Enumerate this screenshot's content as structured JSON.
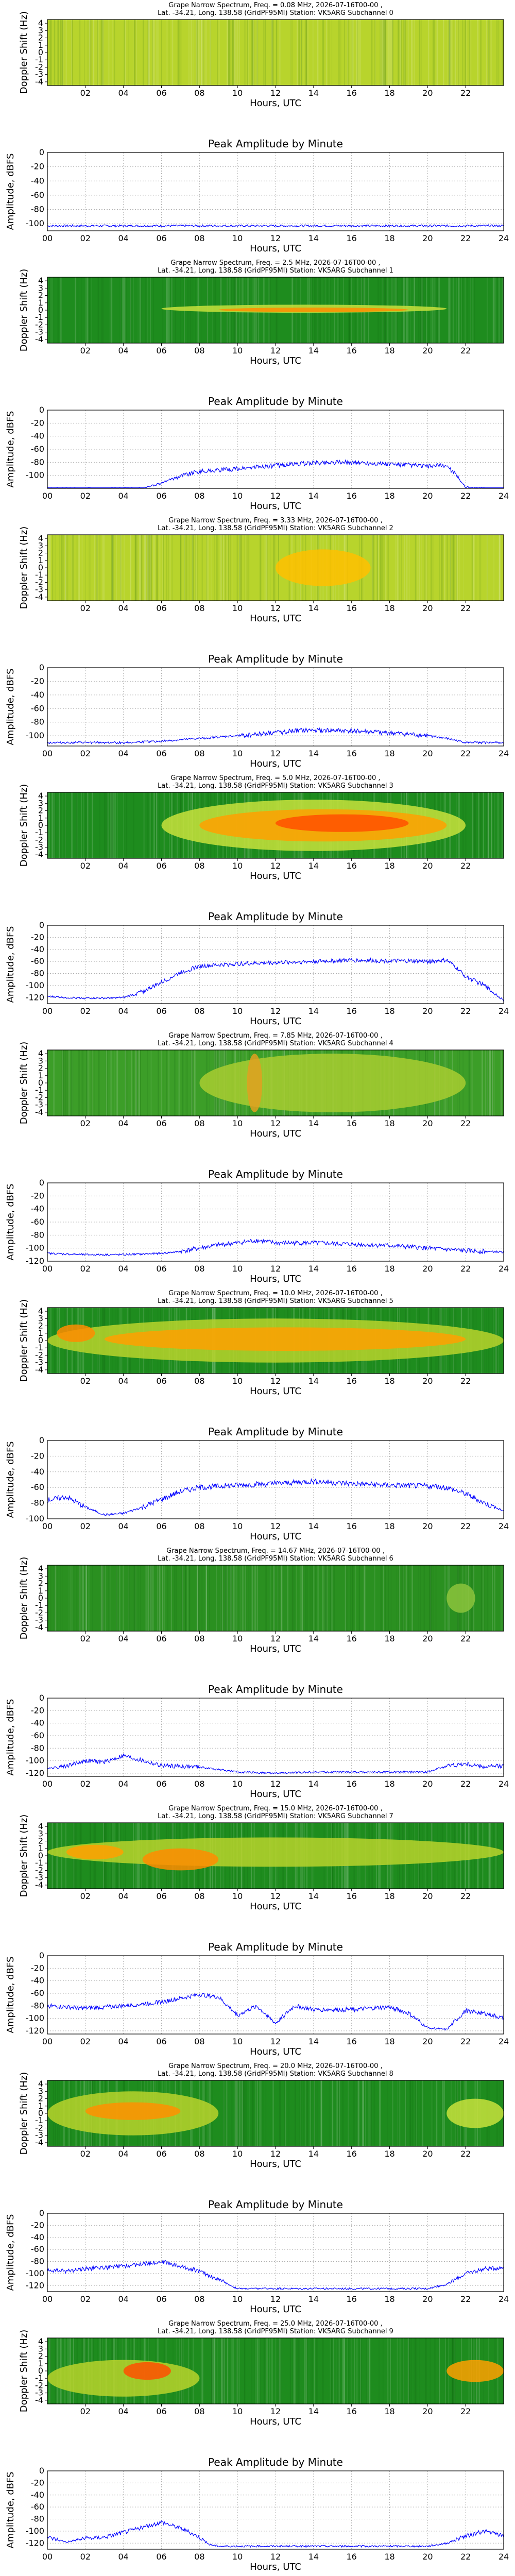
{
  "figure": {
    "spec_ylabel": "Doppler Shift (Hz)",
    "spec_xlabel": "Hours, UTC",
    "spec_yticks": [
      -4,
      -3,
      -2,
      -1,
      0,
      1,
      2,
      3,
      4
    ],
    "spec_xticks": [
      "02",
      "04",
      "06",
      "08",
      "10",
      "12",
      "14",
      "16",
      "18",
      "20",
      "22"
    ],
    "amp_title": "Peak Amplitude by Minute",
    "amp_ylabel": "Amplitude, dBFS",
    "amp_xlabel": "Hours, UTC",
    "amp_xticks": [
      "00",
      "02",
      "04",
      "06",
      "08",
      "10",
      "12",
      "14",
      "16",
      "18",
      "20",
      "22",
      "24"
    ],
    "colors": {
      "trace": "#0000ff",
      "low": "#1a8a1a",
      "mid": "#c8e23c",
      "high": "#ffa000",
      "peak": "#ff3300"
    }
  },
  "channels": [
    {
      "title1": "Grape Narrow Spectrum, Freq. = 0.08 MHz, 2026-07-16T00-00 ,",
      "title2": "Lat. -34.21, Long. 138.58 (GridPF95MI) Station: VK5ARG Subchannel 0",
      "spec_bg": "#b8d42c",
      "spec": [],
      "amp_yticks": [
        0,
        -20,
        -40,
        -60,
        -80,
        -100
      ],
      "amp_ylim": [
        -110,
        0
      ]
    },
    {
      "title1": "Grape Narrow Spectrum, Freq. = 2.5 MHz, 2026-07-16T00-00 ,",
      "title2": "Lat. -34.21, Long. 138.58 (GridPF95MI) Station: VK5ARG Subchannel 1",
      "spec_bg": "#1e8c1e",
      "spec": [
        [
          6,
          21,
          0.2,
          0.55,
          "#c8e23c"
        ],
        [
          9,
          19,
          0.05,
          0.3,
          "#ff8c00"
        ]
      ],
      "amp_yticks": [
        0,
        -20,
        -40,
        -60,
        -80,
        -100
      ],
      "amp_ylim": [
        -120,
        0
      ]
    },
    {
      "title1": "Grape Narrow Spectrum, Freq. = 3.33 MHz, 2026-07-16T00-00 ,",
      "title2": "Lat. -34.21, Long. 138.58 (GridPF95MI) Station: VK5ARG Subchannel 2",
      "spec_bg": "#b8d42c",
      "spec": [
        [
          12,
          17,
          0,
          2.5,
          "#ffc000"
        ]
      ],
      "amp_yticks": [
        0,
        -20,
        -40,
        -60,
        -80,
        -100
      ],
      "amp_ylim": [
        -115,
        0
      ]
    },
    {
      "title1": "Grape Narrow Spectrum, Freq. = 5.0 MHz, 2026-07-16T00-00 ,",
      "title2": "Lat. -34.21, Long. 138.58 (GridPF95MI) Station: VK5ARG Subchannel 3",
      "spec_bg": "#1e8c1e",
      "spec": [
        [
          6,
          22,
          0,
          3.5,
          "#c8e23c"
        ],
        [
          8,
          21,
          0,
          2.2,
          "#ffa000"
        ],
        [
          12,
          19,
          0.3,
          1.2,
          "#ff5000"
        ]
      ],
      "amp_yticks": [
        0,
        -20,
        -40,
        -60,
        -80,
        -100,
        -120
      ],
      "amp_ylim": [
        -130,
        0
      ]
    },
    {
      "title1": "Grape Narrow Spectrum, Freq. = 7.85 MHz, 2026-07-16T00-00 ,",
      "title2": "Lat. -34.21, Long. 138.58 (GridPF95MI) Station: VK5ARG Subchannel 4",
      "spec_bg": "#3c9e28",
      "spec": [
        [
          8,
          22,
          0,
          4,
          "#a8cc30"
        ],
        [
          10.5,
          11.3,
          0,
          4,
          "#e0a020"
        ]
      ],
      "amp_yticks": [
        0,
        -20,
        -40,
        -60,
        -80,
        -100,
        -120
      ],
      "amp_ylim": [
        -120,
        0
      ]
    },
    {
      "title1": "Grape Narrow Spectrum, Freq. = 10.0 MHz, 2026-07-16T00-00 ,",
      "title2": "Lat. -34.21, Long. 138.58 (GridPF95MI) Station: VK5ARG Subchannel 5",
      "spec_bg": "#1e8c1e",
      "spec": [
        [
          0,
          24,
          0,
          3,
          "#b8d42c"
        ],
        [
          3,
          22,
          0.2,
          1.6,
          "#ffa000"
        ],
        [
          0.5,
          2.5,
          1,
          1.2,
          "#ff8c00"
        ]
      ],
      "amp_yticks": [
        0,
        -20,
        -40,
        -60,
        -80,
        -100
      ],
      "amp_ylim": [
        -100,
        0
      ]
    },
    {
      "title1": "Grape Narrow Spectrum, Freq. = 14.67 MHz, 2026-07-16T00-00 ,",
      "title2": "Lat. -34.21, Long. 138.58 (GridPF95MI) Station: VK5ARG Subchannel 6",
      "spec_bg": "#2a9020",
      "spec": [
        [
          21,
          22.5,
          0,
          2,
          "#8cc43c"
        ]
      ],
      "amp_yticks": [
        0,
        -20,
        -40,
        -60,
        -80,
        -100,
        -120
      ],
      "amp_ylim": [
        -125,
        0
      ]
    },
    {
      "title1": "Grape Narrow Spectrum, Freq. = 15.0 MHz, 2026-07-16T00-00 ,",
      "title2": "Lat. -34.21, Long. 138.58 (GridPF95MI) Station: VK5ARG Subchannel 7",
      "spec_bg": "#1e8c1e",
      "spec": [
        [
          0,
          24,
          0.5,
          2,
          "#b8d42c"
        ],
        [
          5,
          9,
          -0.5,
          1.5,
          "#ff8c00"
        ],
        [
          1,
          4,
          0.5,
          1,
          "#ffa000"
        ]
      ],
      "amp_yticks": [
        0,
        -20,
        -40,
        -60,
        -80,
        -100,
        -120
      ],
      "amp_ylim": [
        -125,
        0
      ]
    },
    {
      "title1": "Grape Narrow Spectrum, Freq. = 20.0 MHz, 2026-07-16T00-00 ,",
      "title2": "Lat. -34.21, Long. 138.58 (GridPF95MI) Station: VK5ARG Subchannel 8",
      "spec_bg": "#1e8c1e",
      "spec": [
        [
          0,
          9,
          0,
          3,
          "#b8d42c"
        ],
        [
          2,
          7,
          0.3,
          1.2,
          "#ff9000"
        ],
        [
          21,
          24,
          0,
          2,
          "#c8e23c"
        ]
      ],
      "amp_yticks": [
        0,
        -20,
        -40,
        -60,
        -80,
        -100,
        -120
      ],
      "amp_ylim": [
        -130,
        0
      ]
    },
    {
      "title1": "Grape Narrow Spectrum, Freq. = 25.0 MHz, 2026-07-16T00-00 ,",
      "title2": "Lat. -34.21, Long. 138.58 (GridPF95MI) Station: VK5ARG Subchannel 9",
      "spec_bg": "#1e8c1e",
      "spec": [
        [
          0,
          8,
          -1,
          2.5,
          "#b8d42c"
        ],
        [
          4,
          6.5,
          0,
          1.2,
          "#ff5000"
        ],
        [
          21,
          24,
          0,
          1.5,
          "#ffa000"
        ]
      ],
      "amp_yticks": [
        0,
        -20,
        -40,
        -60,
        -80,
        -100,
        -120
      ],
      "amp_ylim": [
        -130,
        0
      ]
    }
  ],
  "chart_data": [
    {
      "type": "line",
      "title": "Peak Amplitude by Minute",
      "xlabel": "Hours, UTC",
      "ylabel": "Amplitude, dBFS",
      "xlim": [
        0,
        24
      ],
      "ylim": [
        -110,
        0
      ],
      "series": [
        {
          "x": [
            0,
            2,
            4,
            6,
            8,
            10,
            12,
            14,
            16,
            18,
            20,
            22,
            24
          ],
          "y": [
            -103,
            -103,
            -103,
            -103,
            -103,
            -103,
            -103,
            -103,
            -103,
            -103,
            -103,
            -103,
            -103
          ]
        }
      ]
    },
    {
      "type": "line",
      "title": "Peak Amplitude by Minute",
      "xlabel": "Hours, UTC",
      "ylabel": "Amplitude, dBFS",
      "xlim": [
        0,
        24
      ],
      "ylim": [
        -120,
        0
      ],
      "series": [
        {
          "x": [
            0,
            2,
            4,
            5,
            6,
            7,
            8,
            9,
            10,
            12,
            14,
            15,
            16,
            18,
            20,
            21,
            21.5,
            22,
            23,
            24
          ],
          "y": [
            -120,
            -120,
            -120,
            -120,
            -112,
            -100,
            -94,
            -92,
            -90,
            -85,
            -81,
            -80,
            -80,
            -83,
            -86,
            -85,
            -100,
            -118,
            -120,
            -120
          ]
        }
      ]
    },
    {
      "type": "line",
      "title": "Peak Amplitude by Minute",
      "xlabel": "Hours, UTC",
      "ylabel": "Amplitude, dBFS",
      "xlim": [
        0,
        24
      ],
      "ylim": [
        -115,
        0
      ],
      "series": [
        {
          "x": [
            0,
            2,
            4,
            6,
            7,
            8,
            10,
            12,
            13,
            14,
            16,
            18,
            20,
            21,
            22,
            24
          ],
          "y": [
            -110,
            -110,
            -110,
            -108,
            -106,
            -104,
            -100,
            -95,
            -93,
            -92,
            -93,
            -96,
            -100,
            -104,
            -110,
            -110
          ]
        }
      ]
    },
    {
      "type": "line",
      "title": "Peak Amplitude by Minute",
      "xlabel": "Hours, UTC",
      "ylabel": "Amplitude, dBFS",
      "xlim": [
        0,
        24
      ],
      "ylim": [
        -130,
        0
      ],
      "series": [
        {
          "x": [
            0,
            1,
            2,
            3,
            4,
            5,
            6,
            7,
            8,
            10,
            12,
            14,
            16,
            18,
            20,
            21,
            21.5,
            22,
            23,
            24
          ],
          "y": [
            -118,
            -120,
            -121,
            -121,
            -120,
            -110,
            -95,
            -78,
            -68,
            -64,
            -62,
            -60,
            -58,
            -59,
            -60,
            -58,
            -70,
            -85,
            -100,
            -125
          ]
        }
      ]
    },
    {
      "type": "line",
      "title": "Peak Amplitude by Minute",
      "xlabel": "Hours, UTC",
      "ylabel": "Amplitude, dBFS",
      "xlim": [
        0,
        24
      ],
      "ylim": [
        -120,
        0
      ],
      "series": [
        {
          "x": [
            0,
            2,
            4,
            6,
            7,
            8,
            9,
            10,
            11,
            12,
            14,
            16,
            18,
            20,
            22,
            24
          ],
          "y": [
            -108,
            -110,
            -110,
            -108,
            -105,
            -100,
            -95,
            -92,
            -88,
            -92,
            -92,
            -94,
            -96,
            -100,
            -104,
            -106
          ]
        }
      ]
    },
    {
      "type": "line",
      "title": "Peak Amplitude by Minute",
      "xlabel": "Hours, UTC",
      "ylabel": "Amplitude, dBFS",
      "xlim": [
        0,
        24
      ],
      "ylim": [
        -100,
        0
      ],
      "series": [
        {
          "x": [
            0,
            1,
            2,
            3,
            4,
            5,
            6,
            7,
            8,
            10,
            12,
            14,
            16,
            18,
            20,
            21,
            22,
            23,
            24
          ],
          "y": [
            -76,
            -72,
            -85,
            -95,
            -93,
            -85,
            -75,
            -65,
            -60,
            -57,
            -55,
            -52,
            -55,
            -57,
            -58,
            -60,
            -68,
            -80,
            -90
          ]
        }
      ]
    },
    {
      "type": "line",
      "title": "Peak Amplitude by Minute",
      "xlabel": "Hours, UTC",
      "ylabel": "Amplitude, dBFS",
      "xlim": [
        0,
        24
      ],
      "ylim": [
        -125,
        0
      ],
      "series": [
        {
          "x": [
            0,
            1,
            2,
            3,
            4,
            5,
            6,
            8,
            10,
            12,
            14,
            16,
            18,
            20,
            21,
            22,
            23,
            24
          ],
          "y": [
            -112,
            -108,
            -100,
            -102,
            -92,
            -100,
            -108,
            -110,
            -118,
            -120,
            -118,
            -118,
            -118,
            -118,
            -108,
            -105,
            -110,
            -108
          ]
        }
      ]
    },
    {
      "type": "line",
      "title": "Peak Amplitude by Minute",
      "xlabel": "Hours, UTC",
      "ylabel": "Amplitude, dBFS",
      "xlim": [
        0,
        24
      ],
      "ylim": [
        -125,
        0
      ],
      "series": [
        {
          "x": [
            0,
            2,
            4,
            6,
            7,
            8,
            9,
            10,
            11,
            12,
            13,
            14,
            16,
            18,
            19,
            20,
            21,
            22,
            23,
            24
          ],
          "y": [
            -80,
            -84,
            -80,
            -74,
            -68,
            -62,
            -66,
            -95,
            -80,
            -108,
            -80,
            -86,
            -86,
            -82,
            -92,
            -115,
            -118,
            -88,
            -92,
            -100
          ]
        }
      ]
    },
    {
      "type": "line",
      "title": "Peak Amplitude by Minute",
      "xlabel": "Hours, UTC",
      "ylabel": "Amplitude, dBFS",
      "xlim": [
        0,
        24
      ],
      "ylim": [
        -130,
        0
      ],
      "series": [
        {
          "x": [
            0,
            1,
            2,
            3,
            4,
            5,
            6,
            7,
            8,
            9,
            10,
            12,
            14,
            16,
            18,
            20,
            21,
            22,
            23,
            24
          ],
          "y": [
            -95,
            -96,
            -92,
            -90,
            -88,
            -84,
            -80,
            -88,
            -96,
            -110,
            -125,
            -125,
            -125,
            -125,
            -125,
            -125,
            -118,
            -100,
            -92,
            -90
          ]
        }
      ]
    },
    {
      "type": "line",
      "title": "Peak Amplitude by Minute",
      "xlabel": "Hours, UTC",
      "ylabel": "Amplitude, dBFS",
      "xlim": [
        0,
        24
      ],
      "ylim": [
        -130,
        0
      ],
      "series": [
        {
          "x": [
            0,
            1,
            2,
            3,
            4,
            5,
            6,
            7,
            8,
            8.5,
            9,
            10,
            12,
            14,
            16,
            18,
            20,
            21,
            22,
            23,
            24
          ],
          "y": [
            -110,
            -118,
            -112,
            -110,
            -102,
            -94,
            -85,
            -95,
            -110,
            -122,
            -125,
            -125,
            -125,
            -125,
            -125,
            -125,
            -125,
            -120,
            -108,
            -100,
            -108
          ]
        }
      ]
    }
  ]
}
